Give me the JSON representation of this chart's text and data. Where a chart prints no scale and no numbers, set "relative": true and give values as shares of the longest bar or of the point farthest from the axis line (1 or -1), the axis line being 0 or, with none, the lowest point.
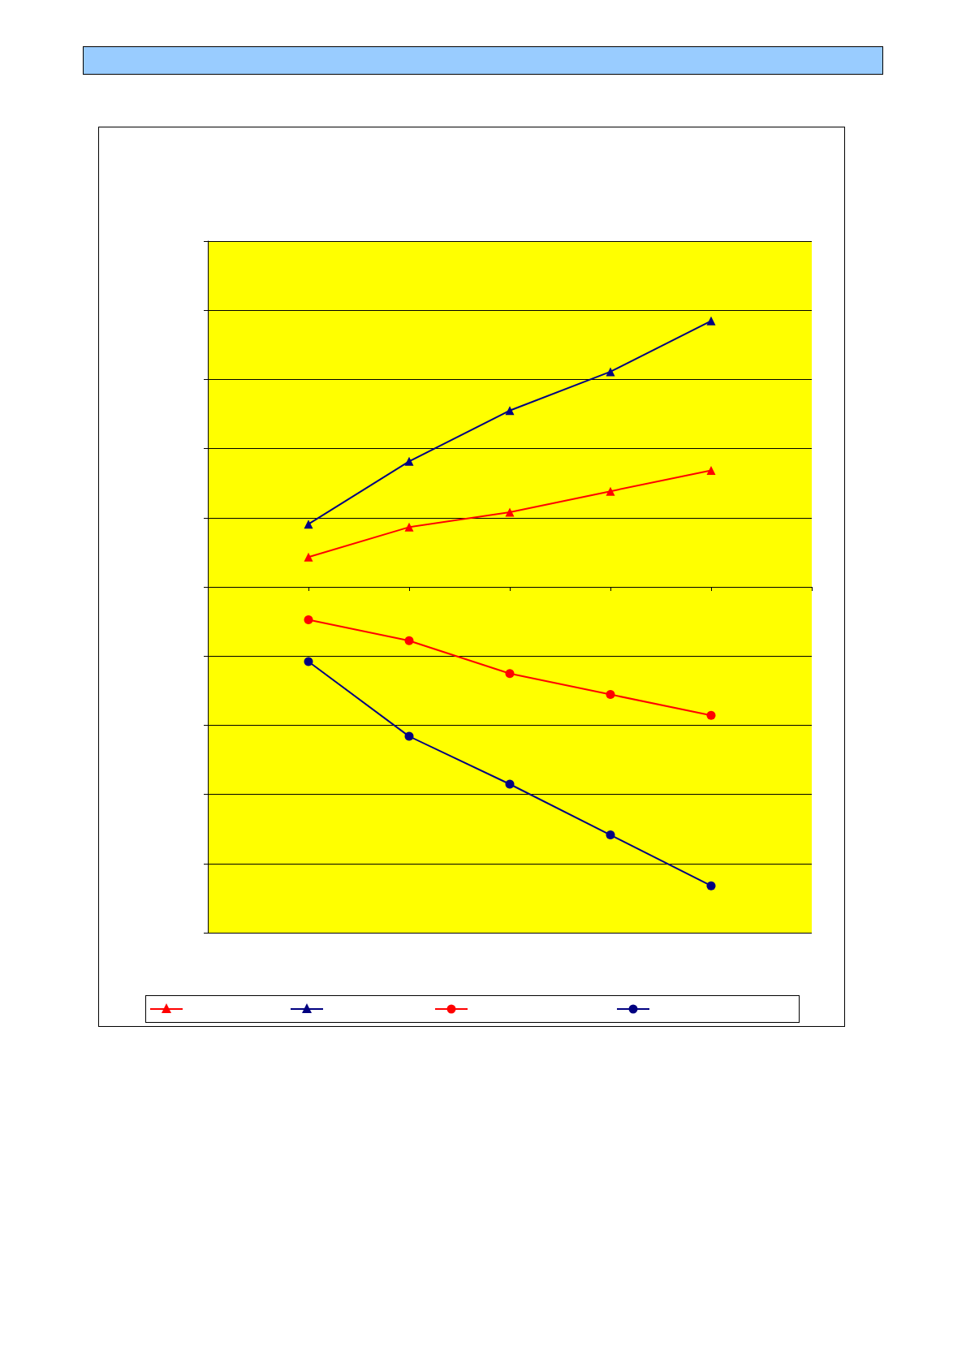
{
  "chart_data": {
    "type": "line",
    "relative": true,
    "categories": [
      null,
      null,
      null,
      null,
      null
    ],
    "grid": "y",
    "line_style": "solid",
    "series": [
      {
        "color": "#ff0000",
        "marker": "triangle",
        "values": [
          0.1,
          0.2,
          0.25,
          0.32,
          0.39
        ]
      },
      {
        "color": "#000080",
        "marker": "triangle",
        "values": [
          0.21,
          0.42,
          0.59,
          0.72,
          0.89
        ]
      },
      {
        "color": "#ff0000",
        "marker": "circle",
        "values": [
          -0.11,
          -0.18,
          -0.29,
          -0.36,
          -0.43
        ]
      },
      {
        "color": "#000080",
        "marker": "circle",
        "values": [
          -0.25,
          -0.5,
          -0.66,
          -0.83,
          -1
        ]
      }
    ]
  }
}
